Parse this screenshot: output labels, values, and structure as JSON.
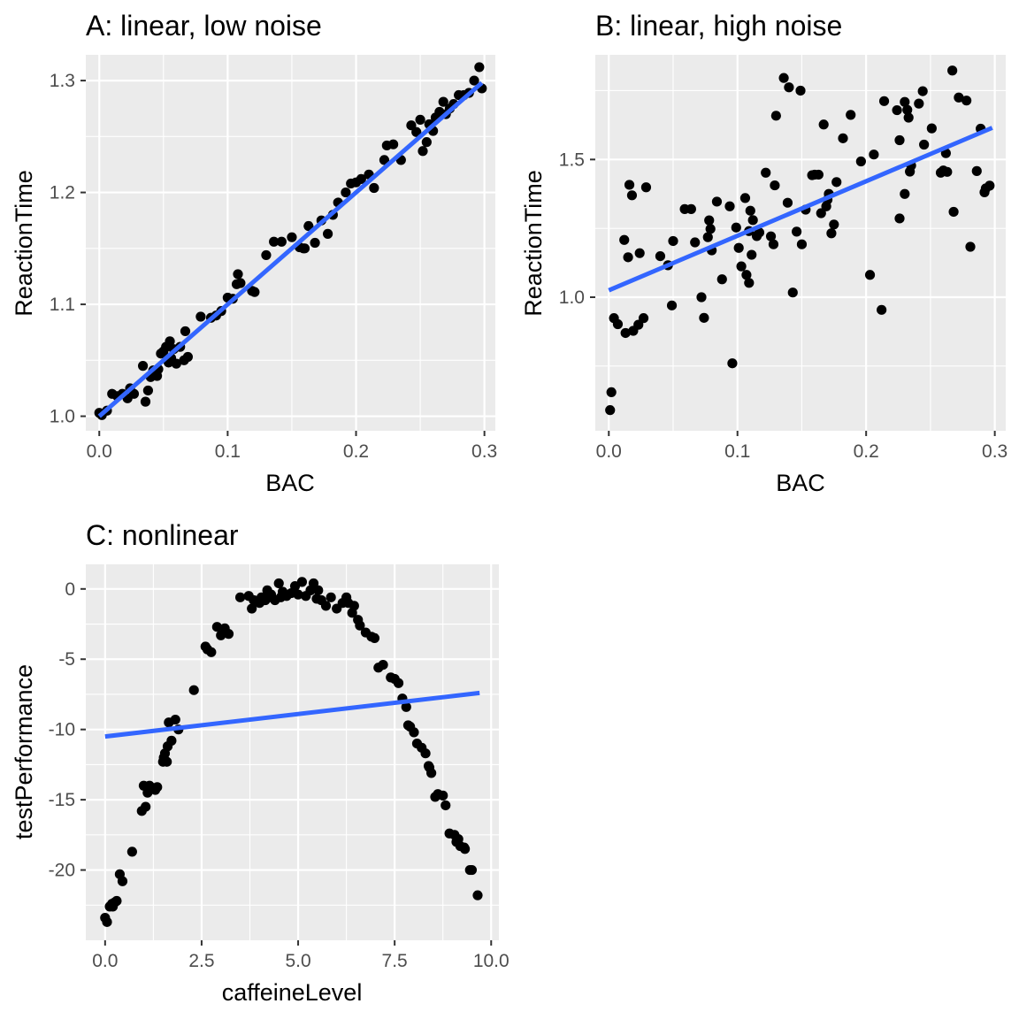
{
  "chart_data": [
    {
      "type": "scatter",
      "panel": "A",
      "title": "A: linear, low noise",
      "xlabel": "BAC",
      "ylabel": "ReactionTime",
      "xlim": [
        -0.0105,
        0.3085
      ],
      "ylim": [
        0.987,
        1.323
      ],
      "x_ticks": [
        0.0,
        0.1,
        0.2,
        0.3
      ],
      "x_tick_labels": [
        "0.0",
        "0.1",
        "0.2",
        "0.3"
      ],
      "y_ticks": [
        1.0,
        1.1,
        1.2,
        1.3
      ],
      "y_tick_labels": [
        "1.0",
        "1.1",
        "1.2",
        "1.3"
      ],
      "grid": true,
      "fit": {
        "x": [
          0.0,
          0.298
        ],
        "y": [
          1.0,
          1.298
        ],
        "color": "#3366FF"
      },
      "points": [
        [
          0.0,
          1.003
        ],
        [
          0.002,
          1.001
        ],
        [
          0.006,
          1.005
        ],
        [
          0.01,
          1.02
        ],
        [
          0.014,
          1.018
        ],
        [
          0.018,
          1.02
        ],
        [
          0.022,
          1.016
        ],
        [
          0.024,
          1.025
        ],
        [
          0.027,
          1.02
        ],
        [
          0.034,
          1.045
        ],
        [
          0.036,
          1.013
        ],
        [
          0.038,
          1.023
        ],
        [
          0.04,
          1.035
        ],
        [
          0.042,
          1.041
        ],
        [
          0.045,
          1.036
        ],
        [
          0.046,
          1.042
        ],
        [
          0.048,
          1.056
        ],
        [
          0.05,
          1.058
        ],
        [
          0.052,
          1.062
        ],
        [
          0.054,
          1.048
        ],
        [
          0.055,
          1.067
        ],
        [
          0.056,
          1.052
        ],
        [
          0.058,
          1.06
        ],
        [
          0.06,
          1.047
        ],
        [
          0.063,
          1.062
        ],
        [
          0.066,
          1.05
        ],
        [
          0.067,
          1.076
        ],
        [
          0.069,
          1.053
        ],
        [
          0.079,
          1.089
        ],
        [
          0.087,
          1.088
        ],
        [
          0.091,
          1.09
        ],
        [
          0.095,
          1.094
        ],
        [
          0.1,
          1.106
        ],
        [
          0.104,
          1.105
        ],
        [
          0.107,
          1.118
        ],
        [
          0.108,
          1.127
        ],
        [
          0.11,
          1.119
        ],
        [
          0.119,
          1.112
        ],
        [
          0.121,
          1.111
        ],
        [
          0.13,
          1.144
        ],
        [
          0.136,
          1.156
        ],
        [
          0.142,
          1.156
        ],
        [
          0.15,
          1.16
        ],
        [
          0.156,
          1.151
        ],
        [
          0.159,
          1.15
        ],
        [
          0.16,
          1.15
        ],
        [
          0.163,
          1.17
        ],
        [
          0.168,
          1.155
        ],
        [
          0.173,
          1.175
        ],
        [
          0.178,
          1.163
        ],
        [
          0.182,
          1.18
        ],
        [
          0.186,
          1.191
        ],
        [
          0.192,
          1.2
        ],
        [
          0.196,
          1.208
        ],
        [
          0.2,
          1.209
        ],
        [
          0.204,
          1.212
        ],
        [
          0.21,
          1.216
        ],
        [
          0.214,
          1.204
        ],
        [
          0.222,
          1.229
        ],
        [
          0.224,
          1.242
        ],
        [
          0.229,
          1.243
        ],
        [
          0.235,
          1.229
        ],
        [
          0.243,
          1.26
        ],
        [
          0.247,
          1.254
        ],
        [
          0.25,
          1.265
        ],
        [
          0.252,
          1.237
        ],
        [
          0.255,
          1.245
        ],
        [
          0.257,
          1.261
        ],
        [
          0.26,
          1.255
        ],
        [
          0.262,
          1.267
        ],
        [
          0.265,
          1.272
        ],
        [
          0.268,
          1.281
        ],
        [
          0.27,
          1.27
        ],
        [
          0.273,
          1.275
        ],
        [
          0.276,
          1.279
        ],
        [
          0.28,
          1.287
        ],
        [
          0.284,
          1.287
        ],
        [
          0.288,
          1.289
        ],
        [
          0.292,
          1.3
        ],
        [
          0.296,
          1.312
        ],
        [
          0.298,
          1.293
        ]
      ]
    },
    {
      "type": "scatter",
      "panel": "B",
      "title": "B: linear, high noise",
      "xlabel": "BAC",
      "ylabel": "ReactionTime",
      "xlim": [
        -0.0105,
        0.3085
      ],
      "ylim": [
        0.515,
        1.88
      ],
      "x_ticks": [
        0.0,
        0.1,
        0.2,
        0.3
      ],
      "x_tick_labels": [
        "0.0",
        "0.1",
        "0.2",
        "0.3"
      ],
      "y_ticks": [
        1.0,
        1.5
      ],
      "y_tick_labels": [
        "1.0",
        "1.5"
      ],
      "grid": true,
      "fit": {
        "x": [
          0.0,
          0.298
        ],
        "y": [
          1.025,
          1.615
        ],
        "color": "#3366FF"
      },
      "points": [
        [
          0.001,
          0.59
        ],
        [
          0.002,
          0.655
        ],
        [
          0.004,
          0.924
        ],
        [
          0.007,
          0.902
        ],
        [
          0.012,
          1.208
        ],
        [
          0.013,
          0.87
        ],
        [
          0.015,
          1.145
        ],
        [
          0.016,
          1.408
        ],
        [
          0.018,
          1.37
        ],
        [
          0.019,
          0.878
        ],
        [
          0.023,
          0.9
        ],
        [
          0.024,
          1.16
        ],
        [
          0.027,
          0.924
        ],
        [
          0.029,
          1.399
        ],
        [
          0.04,
          1.149
        ],
        [
          0.046,
          1.116
        ],
        [
          0.049,
          0.97
        ],
        [
          0.05,
          1.204
        ],
        [
          0.059,
          1.32
        ],
        [
          0.064,
          1.32
        ],
        [
          0.067,
          1.199
        ],
        [
          0.072,
          1.0
        ],
        [
          0.074,
          0.925
        ],
        [
          0.077,
          1.218
        ],
        [
          0.078,
          1.279
        ],
        [
          0.079,
          1.248
        ],
        [
          0.08,
          1.17
        ],
        [
          0.084,
          1.347
        ],
        [
          0.088,
          1.065
        ],
        [
          0.094,
          1.33
        ],
        [
          0.096,
          0.76
        ],
        [
          0.099,
          1.253
        ],
        [
          0.101,
          1.179
        ],
        [
          0.103,
          1.112
        ],
        [
          0.106,
          1.36
        ],
        [
          0.107,
          1.081
        ],
        [
          0.109,
          1.052
        ],
        [
          0.109,
          1.24
        ],
        [
          0.11,
          1.314
        ],
        [
          0.111,
          1.154
        ],
        [
          0.112,
          1.28
        ],
        [
          0.115,
          1.222
        ],
        [
          0.117,
          1.235
        ],
        [
          0.122,
          1.452
        ],
        [
          0.126,
          1.221
        ],
        [
          0.128,
          1.192
        ],
        [
          0.129,
          1.406
        ],
        [
          0.13,
          1.659
        ],
        [
          0.136,
          1.796
        ],
        [
          0.139,
          1.343
        ],
        [
          0.14,
          1.762
        ],
        [
          0.143,
          1.017
        ],
        [
          0.146,
          1.238
        ],
        [
          0.149,
          1.75
        ],
        [
          0.15,
          1.192
        ],
        [
          0.153,
          1.318
        ],
        [
          0.158,
          1.443
        ],
        [
          0.16,
          1.445
        ],
        [
          0.163,
          1.445
        ],
        [
          0.165,
          1.305
        ],
        [
          0.167,
          1.627
        ],
        [
          0.169,
          1.33
        ],
        [
          0.17,
          1.354
        ],
        [
          0.171,
          1.375
        ],
        [
          0.173,
          1.232
        ],
        [
          0.175,
          1.264
        ],
        [
          0.177,
          1.418
        ],
        [
          0.182,
          1.577
        ],
        [
          0.188,
          1.662
        ],
        [
          0.196,
          1.493
        ],
        [
          0.203,
          1.081
        ],
        [
          0.206,
          1.518
        ],
        [
          0.212,
          0.954
        ],
        [
          0.214,
          1.712
        ],
        [
          0.224,
          1.679
        ],
        [
          0.226,
          1.57
        ],
        [
          0.226,
          1.286
        ],
        [
          0.23,
          1.375
        ],
        [
          0.23,
          1.709
        ],
        [
          0.232,
          1.68
        ],
        [
          0.233,
          1.652
        ],
        [
          0.234,
          1.456
        ],
        [
          0.235,
          1.478
        ],
        [
          0.241,
          1.703
        ],
        [
          0.244,
          1.748
        ],
        [
          0.245,
          1.554
        ],
        [
          0.251,
          1.613
        ],
        [
          0.258,
          1.452
        ],
        [
          0.26,
          1.46
        ],
        [
          0.262,
          1.523
        ],
        [
          0.263,
          1.455
        ],
        [
          0.267,
          1.823
        ],
        [
          0.268,
          1.31
        ],
        [
          0.272,
          1.725
        ],
        [
          0.278,
          1.714
        ],
        [
          0.281,
          1.183
        ],
        [
          0.286,
          1.458
        ],
        [
          0.289,
          1.612
        ],
        [
          0.292,
          1.381
        ],
        [
          0.293,
          1.395
        ],
        [
          0.296,
          1.405
        ]
      ]
    },
    {
      "type": "scatter",
      "panel": "C",
      "title": "C: nonlinear",
      "xlabel": "caffeineLevel",
      "ylabel": "testPerformance",
      "xlim": [
        -0.5,
        10.2
      ],
      "ylim": [
        -25.0,
        1.75
      ],
      "x_ticks": [
        0.0,
        2.5,
        5.0,
        7.5,
        10.0
      ],
      "x_tick_labels": [
        "0.0",
        "2.5",
        "5.0",
        "7.5",
        "10.0"
      ],
      "y_ticks": [
        0,
        -5,
        -10,
        -15,
        -20
      ],
      "y_tick_labels": [
        "0",
        "-5",
        "-10",
        "-15",
        "-20"
      ],
      "grid": true,
      "fit": {
        "x": [
          0.0,
          9.7
        ],
        "y": [
          -10.5,
          -7.4
        ],
        "color": "#3366FF"
      },
      "points": [
        [
          0.0,
          -23.4
        ],
        [
          0.05,
          -23.7
        ],
        [
          0.12,
          -22.6
        ],
        [
          0.18,
          -22.4
        ],
        [
          0.2,
          -22.6
        ],
        [
          0.25,
          -22.3
        ],
        [
          0.3,
          -22.2
        ],
        [
          0.38,
          -20.3
        ],
        [
          0.45,
          -20.8
        ],
        [
          0.7,
          -18.7
        ],
        [
          0.95,
          -15.8
        ],
        [
          1.0,
          -14.0
        ],
        [
          1.05,
          -15.5
        ],
        [
          1.1,
          -14.5
        ],
        [
          1.15,
          -14.0
        ],
        [
          1.3,
          -14.3
        ],
        [
          1.35,
          -14.1
        ],
        [
          1.5,
          -12.3
        ],
        [
          1.52,
          -12.0
        ],
        [
          1.55,
          -11.7
        ],
        [
          1.6,
          -12.3
        ],
        [
          1.62,
          -11.2
        ],
        [
          1.65,
          -9.5
        ],
        [
          1.72,
          -10.8
        ],
        [
          1.82,
          -9.3
        ],
        [
          1.9,
          -10.0
        ],
        [
          2.3,
          -7.2
        ],
        [
          2.6,
          -4.1
        ],
        [
          2.65,
          -4.3
        ],
        [
          2.75,
          -4.5
        ],
        [
          2.9,
          -2.7
        ],
        [
          3.0,
          -3.3
        ],
        [
          3.1,
          -2.8
        ],
        [
          3.2,
          -3.2
        ],
        [
          3.5,
          -0.6
        ],
        [
          3.72,
          -0.5
        ],
        [
          3.8,
          -1.4
        ],
        [
          3.85,
          -0.8
        ],
        [
          4.0,
          -1.0
        ],
        [
          4.05,
          -0.6
        ],
        [
          4.15,
          -0.8
        ],
        [
          4.2,
          -0.1
        ],
        [
          4.25,
          -0.6
        ],
        [
          4.3,
          -0.4
        ],
        [
          4.4,
          -0.8
        ],
        [
          4.5,
          0.4
        ],
        [
          4.55,
          -0.6
        ],
        [
          4.6,
          -0.2
        ],
        [
          4.7,
          -0.5
        ],
        [
          4.82,
          -0.3
        ],
        [
          4.92,
          0.2
        ],
        [
          5.0,
          -0.4
        ],
        [
          5.1,
          0.5
        ],
        [
          5.2,
          -0.5
        ],
        [
          5.32,
          -0.1
        ],
        [
          5.4,
          0.4
        ],
        [
          5.48,
          -0.7
        ],
        [
          5.52,
          -0.1
        ],
        [
          5.6,
          -0.8
        ],
        [
          5.72,
          -1.2
        ],
        [
          5.85,
          -0.6
        ],
        [
          6.0,
          -1.4
        ],
        [
          6.15,
          -1.0
        ],
        [
          6.25,
          -0.6
        ],
        [
          6.3,
          -1.0
        ],
        [
          6.4,
          -1.7
        ],
        [
          6.45,
          -1.2
        ],
        [
          6.55,
          -2.2
        ],
        [
          6.6,
          -2.6
        ],
        [
          6.75,
          -3.1
        ],
        [
          6.9,
          -3.4
        ],
        [
          6.98,
          -3.5
        ],
        [
          7.08,
          -5.6
        ],
        [
          7.2,
          -5.4
        ],
        [
          7.4,
          -6.3
        ],
        [
          7.5,
          -6.4
        ],
        [
          7.6,
          -6.7
        ],
        [
          7.7,
          -7.8
        ],
        [
          7.8,
          -8.4
        ],
        [
          7.85,
          -9.7
        ],
        [
          7.9,
          -9.8
        ],
        [
          8.0,
          -10.2
        ],
        [
          8.08,
          -11.0
        ],
        [
          8.2,
          -11.3
        ],
        [
          8.3,
          -11.7
        ],
        [
          8.38,
          -12.6
        ],
        [
          8.4,
          -12.7
        ],
        [
          8.45,
          -13.1
        ],
        [
          8.55,
          -14.8
        ],
        [
          8.62,
          -14.6
        ],
        [
          8.75,
          -14.7
        ],
        [
          8.82,
          -15.4
        ],
        [
          8.92,
          -17.4
        ],
        [
          9.05,
          -17.5
        ],
        [
          9.1,
          -18.0
        ],
        [
          9.15,
          -17.8
        ],
        [
          9.2,
          -18.3
        ],
        [
          9.3,
          -18.4
        ],
        [
          9.32,
          -18.5
        ],
        [
          9.45,
          -20.0
        ],
        [
          9.5,
          -20.0
        ],
        [
          9.65,
          -21.8
        ]
      ]
    }
  ]
}
